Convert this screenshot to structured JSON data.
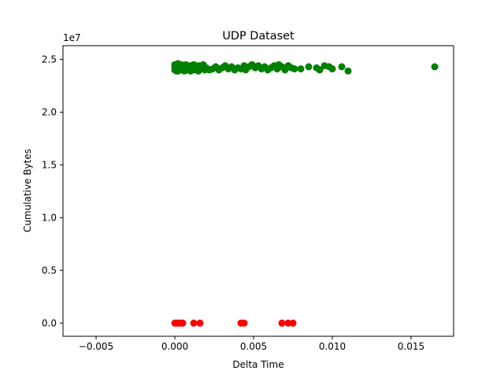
{
  "chart_data": {
    "type": "scatter",
    "title": "UDP Dataset",
    "xlabel": "Delta Time",
    "ylabel": "Cumulative Bytes",
    "y_offset_label": "1e7",
    "xlim": [
      -0.0071,
      0.0177
    ],
    "ylim": [
      -1.25,
      26.3
    ],
    "y_scale_note": "y values in units of 1e7 bytes",
    "x_ticks": [
      -0.005,
      0.0,
      0.005,
      0.01,
      0.015
    ],
    "x_tick_labels": [
      "−0.005",
      "0.000",
      "0.005",
      "0.010",
      "0.015"
    ],
    "y_ticks": [
      0.0,
      5.0,
      10.0,
      15.0,
      20.0,
      25.0
    ],
    "y_tick_labels": [
      "0.0",
      "0.5",
      "1.0",
      "1.5",
      "2.0",
      "2.5"
    ],
    "grid": false,
    "legend": "none",
    "series": [
      {
        "color": "#008000",
        "points": [
          [
            0.0,
            24.0
          ],
          [
            0.0,
            24.3
          ],
          [
            0.0,
            24.5
          ],
          [
            0.0001,
            23.9
          ],
          [
            0.0001,
            24.2
          ],
          [
            0.0001,
            24.4
          ],
          [
            0.0002,
            24.1
          ],
          [
            0.0002,
            24.6
          ],
          [
            0.0002,
            23.9
          ],
          [
            0.0003,
            24.3
          ],
          [
            0.0003,
            24.0
          ],
          [
            0.0004,
            24.5
          ],
          [
            0.0004,
            24.2
          ],
          [
            0.0005,
            24.0
          ],
          [
            0.0005,
            24.4
          ],
          [
            0.0006,
            23.9
          ],
          [
            0.0006,
            24.3
          ],
          [
            0.0007,
            24.1
          ],
          [
            0.0007,
            24.5
          ],
          [
            0.0008,
            24.0
          ],
          [
            0.0008,
            24.3
          ],
          [
            0.0009,
            24.2
          ],
          [
            0.001,
            24.4
          ],
          [
            0.001,
            23.9
          ],
          [
            0.0011,
            24.1
          ],
          [
            0.0012,
            24.3
          ],
          [
            0.0012,
            24.5
          ],
          [
            0.0013,
            24.0
          ],
          [
            0.0014,
            24.2
          ],
          [
            0.0015,
            24.4
          ],
          [
            0.0015,
            23.9
          ],
          [
            0.0016,
            24.1
          ],
          [
            0.0017,
            24.3
          ],
          [
            0.0018,
            24.5
          ],
          [
            0.0019,
            24.0
          ],
          [
            0.002,
            24.2
          ],
          [
            0.0022,
            24.0
          ],
          [
            0.0024,
            24.1
          ],
          [
            0.0026,
            24.3
          ],
          [
            0.0028,
            24.0
          ],
          [
            0.003,
            24.2
          ],
          [
            0.0032,
            24.4
          ],
          [
            0.0034,
            24.1
          ],
          [
            0.0036,
            24.3
          ],
          [
            0.0038,
            24.0
          ],
          [
            0.004,
            24.2
          ],
          [
            0.0042,
            24.1
          ],
          [
            0.0044,
            24.4
          ],
          [
            0.0045,
            24.0
          ],
          [
            0.0047,
            24.3
          ],
          [
            0.0049,
            24.5
          ],
          [
            0.0051,
            24.2
          ],
          [
            0.0053,
            24.4
          ],
          [
            0.0055,
            24.1
          ],
          [
            0.0057,
            24.3
          ],
          [
            0.0059,
            24.0
          ],
          [
            0.0061,
            24.2
          ],
          [
            0.0063,
            24.4
          ],
          [
            0.0065,
            24.1
          ],
          [
            0.0066,
            24.5
          ],
          [
            0.0068,
            24.3
          ],
          [
            0.007,
            24.0
          ],
          [
            0.0072,
            24.4
          ],
          [
            0.0074,
            24.2
          ],
          [
            0.0076,
            24.1
          ],
          [
            0.008,
            24.1
          ],
          [
            0.0085,
            24.3
          ],
          [
            0.009,
            24.2
          ],
          [
            0.0092,
            24.0
          ],
          [
            0.0095,
            24.4
          ],
          [
            0.0098,
            24.3
          ],
          [
            0.01,
            24.1
          ],
          [
            0.0106,
            24.3
          ],
          [
            0.011,
            23.9
          ],
          [
            0.0165,
            24.3
          ]
        ]
      },
      {
        "color": "#ff0000",
        "points": [
          [
            0.0,
            0.0
          ],
          [
            0.0001,
            0.0
          ],
          [
            0.0002,
            0.0
          ],
          [
            0.0003,
            0.0
          ],
          [
            0.0004,
            0.0
          ],
          [
            0.0005,
            0.0
          ],
          [
            0.0012,
            0.0
          ],
          [
            0.0016,
            0.0
          ],
          [
            0.0042,
            0.0
          ],
          [
            0.0044,
            0.0
          ],
          [
            0.0068,
            0.0
          ],
          [
            0.0072,
            0.0
          ],
          [
            0.0075,
            0.0
          ]
        ]
      }
    ]
  }
}
